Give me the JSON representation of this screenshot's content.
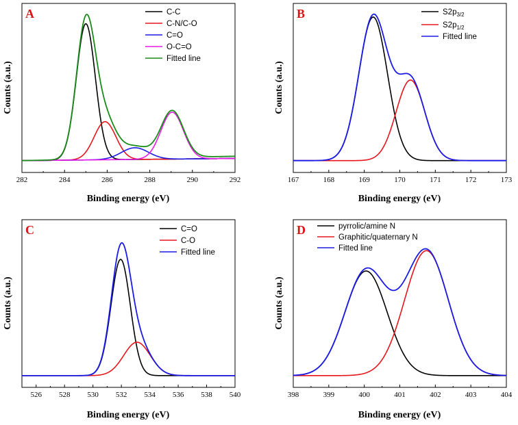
{
  "colors": {
    "black": "#000000",
    "red": "#e8141b",
    "blue": "#1a1ae6",
    "magenta": "#e619e6",
    "green": "#1a8a1a",
    "label_red": "#d91414"
  },
  "chart_data": [
    {
      "type": "line",
      "panel_label": "A",
      "xlabel": "Binding energy (eV)",
      "ylabel": "Counts (a.u.)",
      "xlim": [
        282,
        292
      ],
      "ylim": [
        0,
        1.05
      ],
      "xticks": [
        282,
        284,
        286,
        288,
        290,
        292
      ],
      "baseline_slope": [
        0.0,
        0.03
      ],
      "series": [
        {
          "name": "C-C",
          "color": "#000000",
          "peaks": [
            {
              "center": 285.0,
              "height": 0.93,
              "fwhm": 1.05
            }
          ]
        },
        {
          "name": "C-N/C-O",
          "color": "#e8141b",
          "peaks": [
            {
              "center": 285.9,
              "height": 0.26,
              "fwhm": 1.2
            }
          ]
        },
        {
          "name": "C=O",
          "color": "#1a1ae6",
          "peaks": [
            {
              "center": 287.3,
              "height": 0.08,
              "fwhm": 1.5
            }
          ]
        },
        {
          "name": "O-C=O",
          "color": "#e619e6",
          "peaks": [
            {
              "center": 289.05,
              "height": 0.32,
              "fwhm": 1.25
            }
          ]
        },
        {
          "name": "Fitted line",
          "color": "#1a8a1a",
          "peaks": [
            {
              "center": 285.0,
              "height": 0.93,
              "fwhm": 1.05
            },
            {
              "center": 285.9,
              "height": 0.26,
              "fwhm": 1.2
            },
            {
              "center": 287.3,
              "height": 0.08,
              "fwhm": 1.5
            },
            {
              "center": 289.05,
              "height": 0.32,
              "fwhm": 1.25
            }
          ]
        }
      ]
    },
    {
      "type": "line",
      "panel_label": "B",
      "xlabel": "Binding energy (eV)",
      "ylabel": "Counts (a.u.)",
      "xlim": [
        167,
        173
      ],
      "ylim": [
        0,
        1.05
      ],
      "xticks": [
        167,
        168,
        169,
        170,
        171,
        172,
        173
      ],
      "baseline_slope": [
        0.0,
        0.0
      ],
      "series": [
        {
          "name": "S2p",
          "sub": "3/2",
          "color": "#000000",
          "peaks": [
            {
              "center": 169.25,
              "height": 0.98,
              "fwhm": 0.95
            }
          ]
        },
        {
          "name": "S2p",
          "sub": "1/2",
          "color": "#e8141b",
          "peaks": [
            {
              "center": 170.3,
              "height": 0.55,
              "fwhm": 0.95
            }
          ]
        },
        {
          "name": "Fitted line",
          "color": "#1a1ae6",
          "peaks": [
            {
              "center": 169.25,
              "height": 0.98,
              "fwhm": 0.95
            },
            {
              "center": 170.3,
              "height": 0.55,
              "fwhm": 0.95
            }
          ]
        }
      ]
    },
    {
      "type": "line",
      "panel_label": "C",
      "xlabel": "Binding energy (eV)",
      "ylabel": "Counts (a.u.)",
      "xlim": [
        525,
        540
      ],
      "ylim": [
        0,
        1.05
      ],
      "xticks": [
        526,
        528,
        530,
        532,
        534,
        536,
        538,
        540
      ],
      "baseline_slope": [
        0.0,
        0.0
      ],
      "series": [
        {
          "name": "C=O",
          "color": "#000000",
          "peaks": [
            {
              "center": 531.95,
              "height": 0.8,
              "fwhm": 1.6
            }
          ]
        },
        {
          "name": "C-O",
          "color": "#e8141b",
          "peaks": [
            {
              "center": 533.1,
              "height": 0.23,
              "fwhm": 2.2
            }
          ]
        },
        {
          "name": "Fitted line",
          "color": "#1a1ae6",
          "peaks": [
            {
              "center": 531.95,
              "height": 0.8,
              "fwhm": 1.6
            },
            {
              "center": 533.1,
              "height": 0.23,
              "fwhm": 2.2
            }
          ]
        }
      ]
    },
    {
      "type": "line",
      "panel_label": "D",
      "xlabel": "Binding energy (eV)",
      "ylabel": "Counts (a.u.)",
      "xlim": [
        398,
        404
      ],
      "ylim": [
        0,
        1.05
      ],
      "xticks": [
        398,
        399,
        400,
        401,
        402,
        403,
        404
      ],
      "baseline_slope": [
        0.0,
        0.0
      ],
      "series": [
        {
          "name": "pyrrolic/amine N",
          "color": "#000000",
          "peaks": [
            {
              "center": 400.05,
              "height": 0.72,
              "fwhm": 1.4
            }
          ]
        },
        {
          "name": "Graphitic/quaternary N",
          "color": "#e8141b",
          "peaks": [
            {
              "center": 401.75,
              "height": 0.86,
              "fwhm": 1.45
            }
          ]
        },
        {
          "name": "Fitted line",
          "color": "#1a1ae6",
          "peaks": [
            {
              "center": 400.05,
              "height": 0.72,
              "fwhm": 1.4
            },
            {
              "center": 401.75,
              "height": 0.86,
              "fwhm": 1.45
            }
          ]
        }
      ]
    }
  ]
}
